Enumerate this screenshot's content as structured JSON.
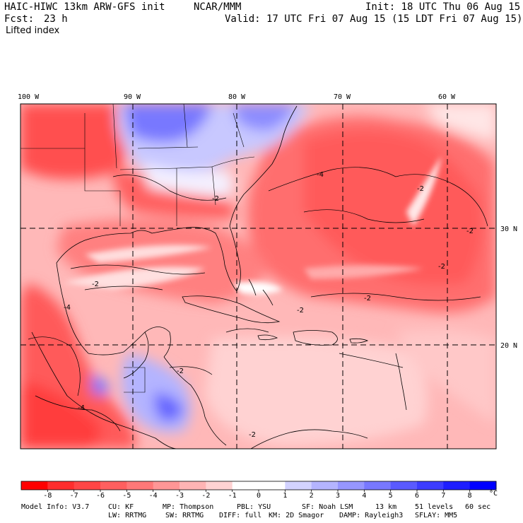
{
  "header": {
    "model_title": "HAIC-HIWC 13km ARW-GFS init",
    "institution": "NCAR/MMM",
    "init": "Init: 18 UTC Thu 06 Aug 15",
    "fcst_label": "Fcst:",
    "fcst_value": "23 h",
    "valid": "Valid: 17 UTC Fri 07 Aug 15 (15 LDT Fri 07 Aug 15)",
    "field": "Lifted index"
  },
  "map": {
    "lon_labels": [
      "100 W",
      "90 W",
      "80 W",
      "70 W",
      "60 W"
    ],
    "lat_labels": [
      "30 N",
      "20 N"
    ],
    "contour_labels": [
      "-4",
      "-4",
      "-2",
      "-2",
      "-2",
      "-2",
      "-2",
      "-2",
      "-2",
      "-4",
      "-2",
      "-2"
    ]
  },
  "colorbar": {
    "colors": [
      "#ff0000",
      "#ff2d2d",
      "#ff4646",
      "#ff5f5f",
      "#ff7878",
      "#ff9696",
      "#ffb4b4",
      "#ffd2d2",
      "#ffffff",
      "#ffffff",
      "#d2d2ff",
      "#b4b4ff",
      "#9696ff",
      "#7878ff",
      "#5a5aff",
      "#3c3cff",
      "#1e1eff",
      "#0000ff"
    ],
    "labels": [
      "-8",
      "-7",
      "-6",
      "-5",
      "-4",
      "-3",
      "-2",
      "-1",
      "0",
      "1",
      "2",
      "3",
      "4",
      "5",
      "6",
      "7",
      "8"
    ],
    "unit": "°C"
  },
  "footer": {
    "line1": [
      "Model Info: V3.7",
      "CU: KF",
      "MP: Thompson",
      "PBL: YSU",
      "SF: Noah LSM",
      "13 km",
      "51 levels",
      "60 sec"
    ],
    "line2": [
      "LW: RRTMG",
      "SW: RRTMG",
      "DIFF: full",
      "KM: 2D Smagor",
      "DAMP: Rayleigh3",
      "SFLAY: MM5"
    ]
  }
}
